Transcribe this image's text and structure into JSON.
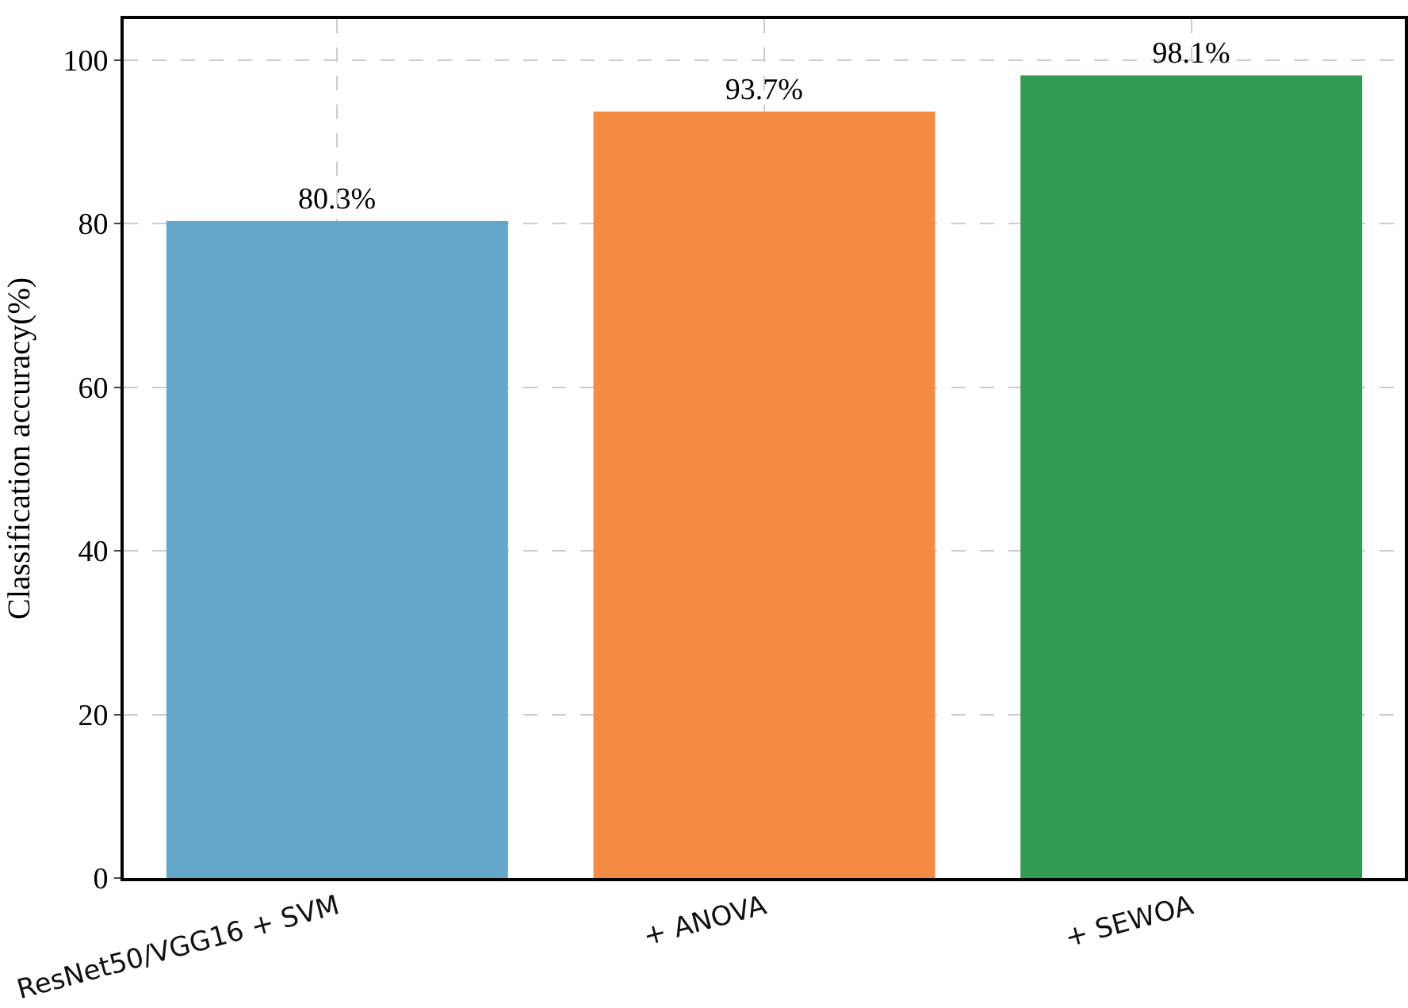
{
  "chart_data": {
    "type": "bar",
    "ylabel": "Classification accuracy(%)",
    "categories": [
      "ResNet50/VGG16 + SVM",
      "+ ANOVA",
      "+ SEWOA"
    ],
    "values": [
      80.3,
      93.7,
      98.1
    ],
    "colors": [
      "#65a6cb",
      "#f38b43",
      "#329b53"
    ],
    "value_labels": [
      "80.3%",
      "93.7%",
      "98.1%"
    ],
    "ylim": [
      0,
      105
    ],
    "yticks": [
      0,
      20,
      40,
      60,
      80,
      100
    ],
    "grid": true
  }
}
